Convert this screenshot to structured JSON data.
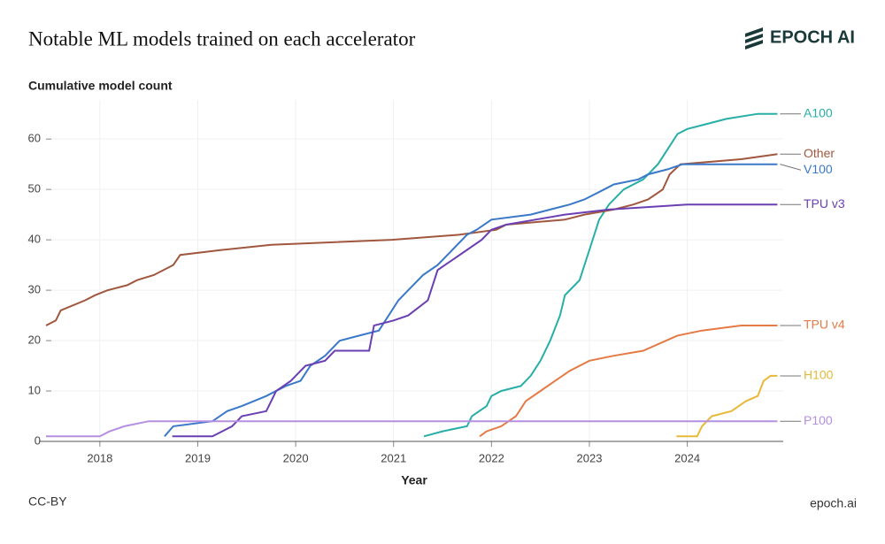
{
  "chart_data": {
    "type": "line",
    "title": "Notable ML models trained on each accelerator",
    "brand": "EPOCH AI",
    "y_label": "Cumulative model count",
    "x_label": "Year",
    "license": "CC-BY",
    "site": "epoch.ai",
    "xlim": [
      2017.45,
      2024.98
    ],
    "ylim": [
      0,
      66
    ],
    "xticks": [
      2018,
      2019,
      2020,
      2021,
      2022,
      2023,
      2024
    ],
    "yticks": [
      0,
      10,
      20,
      30,
      40,
      50,
      60
    ],
    "grid": true,
    "series": [
      {
        "name": "A100",
        "color": "#27aea6",
        "x": [
          2021.31,
          2021.5,
          2021.75,
          2021.8,
          2021.95,
          2022.0,
          2022.1,
          2022.3,
          2022.4,
          2022.5,
          2022.6,
          2022.7,
          2022.75,
          2022.9,
          2023.0,
          2023.1,
          2023.2,
          2023.35,
          2023.55,
          2023.7,
          2023.8,
          2023.9,
          2024.0,
          2024.2,
          2024.4,
          2024.72,
          2024.92
        ],
        "values": [
          1,
          2,
          3,
          5,
          7,
          9,
          10,
          11,
          13,
          16,
          20,
          25,
          29,
          32,
          38,
          44,
          47,
          50,
          52,
          55,
          58,
          61,
          62,
          63,
          64,
          65,
          65
        ]
      },
      {
        "name": "Other",
        "color": "#a0573e",
        "x": [
          2017.45,
          2017.55,
          2017.6,
          2017.85,
          2017.95,
          2018.08,
          2018.28,
          2018.38,
          2018.55,
          2018.75,
          2018.82,
          2019.25,
          2019.75,
          2020.98,
          2021.67,
          2022.05,
          2022.15,
          2022.75,
          2022.95,
          2023.25,
          2023.45,
          2023.6,
          2023.75,
          2023.82,
          2023.93,
          2024.55,
          2024.92
        ],
        "values": [
          23,
          24,
          26,
          28,
          29,
          30,
          31,
          32,
          33,
          35,
          37,
          38,
          39,
          40,
          41,
          42,
          43,
          44,
          45,
          46,
          47,
          48,
          50,
          53,
          55,
          56,
          57
        ]
      },
      {
        "name": "V100",
        "color": "#3a78c9",
        "x": [
          2018.66,
          2018.75,
          2019.15,
          2019.3,
          2019.45,
          2019.7,
          2019.9,
          2020.05,
          2020.15,
          2020.3,
          2020.45,
          2020.65,
          2020.85,
          2020.95,
          2021.05,
          2021.15,
          2021.3,
          2021.45,
          2021.6,
          2021.75,
          2021.85,
          2022.0,
          2022.4,
          2022.6,
          2022.8,
          2022.95,
          2023.15,
          2023.25,
          2023.5,
          2023.6,
          2023.8,
          2023.95,
          2024.92
        ],
        "values": [
          1,
          3,
          4,
          6,
          7,
          9,
          11,
          12,
          15,
          17,
          20,
          21,
          22,
          25,
          28,
          30,
          33,
          35,
          38,
          41,
          42,
          44,
          45,
          46,
          47,
          48,
          50,
          51,
          52,
          53,
          54,
          55,
          55
        ]
      },
      {
        "name": "TPU v3",
        "color": "#6a3fb3",
        "x": [
          2018.74,
          2019.15,
          2019.35,
          2019.45,
          2019.7,
          2019.8,
          2019.95,
          2020.1,
          2020.3,
          2020.4,
          2020.75,
          2020.8,
          2021.0,
          2021.15,
          2021.35,
          2021.45,
          2021.6,
          2021.75,
          2021.9,
          2022.0,
          2022.15,
          2022.45,
          2022.75,
          2023.2,
          2024.0,
          2024.92
        ],
        "values": [
          1,
          1,
          3,
          5,
          6,
          10,
          12,
          15,
          16,
          18,
          18,
          23,
          24,
          25,
          28,
          34,
          36,
          38,
          40,
          42,
          43,
          44,
          45,
          46,
          47,
          47
        ]
      },
      {
        "name": "TPU v4",
        "color": "#e57a45",
        "x": [
          2021.88,
          2021.95,
          2022.1,
          2022.25,
          2022.35,
          2022.5,
          2022.65,
          2022.8,
          2023.0,
          2023.25,
          2023.55,
          2023.9,
          2024.15,
          2024.55,
          2024.92
        ],
        "values": [
          1,
          2,
          3,
          5,
          8,
          10,
          12,
          14,
          16,
          17,
          18,
          21,
          22,
          23,
          23
        ]
      },
      {
        "name": "H100",
        "color": "#e8b83a",
        "x": [
          2023.89,
          2024.1,
          2024.15,
          2024.25,
          2024.45,
          2024.6,
          2024.72,
          2024.78,
          2024.85,
          2024.92
        ],
        "values": [
          1,
          1,
          3,
          5,
          6,
          8,
          9,
          12,
          13,
          13
        ]
      },
      {
        "name": "P100",
        "color": "#b58fe0",
        "x": [
          2017.45,
          2018.0,
          2018.1,
          2018.25,
          2018.5,
          2024.92
        ],
        "values": [
          1,
          1,
          2,
          3,
          4,
          4
        ]
      }
    ]
  }
}
